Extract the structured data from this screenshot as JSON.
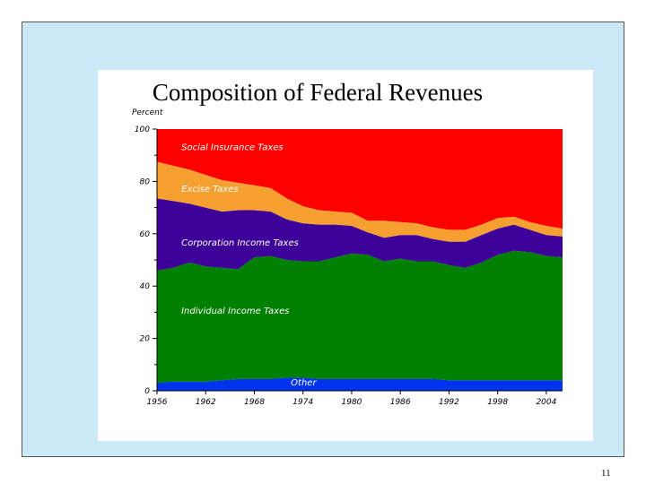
{
  "slide": {
    "page_number": "11"
  },
  "chart_data": {
    "type": "area",
    "stacked": true,
    "title": "Composition of Federal Revenues",
    "ylabel": "Percent",
    "xlabel": "",
    "ylim": [
      0,
      100
    ],
    "xlim": [
      1956,
      2006
    ],
    "y_ticks": [
      "0",
      "20",
      "40",
      "60",
      "80",
      "100"
    ],
    "x_ticks": [
      "1956",
      "1962",
      "1968",
      "1974",
      "1980",
      "1986",
      "1992",
      "1998",
      "2004"
    ],
    "x": [
      1956,
      1958,
      1960,
      1962,
      1964,
      1966,
      1968,
      1970,
      1972,
      1974,
      1976,
      1978,
      1980,
      1982,
      1984,
      1986,
      1988,
      1990,
      1992,
      1994,
      1996,
      1998,
      2000,
      2002,
      2004,
      2006
    ],
    "series": [
      {
        "name": "Other",
        "label": "Other",
        "color": "#0033ee",
        "values": [
          3,
          3.5,
          3.5,
          3.5,
          4,
          4.5,
          4.5,
          4.5,
          5,
          5,
          4.5,
          4.5,
          4.5,
          4.5,
          4.5,
          4.5,
          4.5,
          4.5,
          4,
          4,
          4,
          4,
          4,
          4,
          4,
          4
        ]
      },
      {
        "name": "Individual Income Taxes",
        "label": "Individual Income Taxes",
        "color": "#008000",
        "values": [
          43,
          43.5,
          45.5,
          44,
          43,
          42,
          46.5,
          47,
          45,
          44.5,
          45,
          46.5,
          48,
          47.5,
          45,
          46,
          45,
          45,
          44,
          43,
          45,
          48,
          49.5,
          49,
          47.5,
          47
        ]
      },
      {
        "name": "Corporation Income Taxes",
        "label": "Corporation Income Taxes",
        "color": "#3d0099",
        "values": [
          27.5,
          25.5,
          22.5,
          22.5,
          21.5,
          22.5,
          18,
          17,
          15.5,
          14.5,
          14,
          12.5,
          10.5,
          8.5,
          9,
          9,
          10,
          8.5,
          9,
          10,
          10.5,
          10,
          10,
          8.5,
          8,
          8
        ]
      },
      {
        "name": "Excise Taxes",
        "label": "Excise Taxes",
        "color": "#f5a030",
        "values": [
          14,
          13.5,
          13,
          12.5,
          12,
          10.5,
          9.5,
          9,
          8,
          6.5,
          5.5,
          5,
          5,
          4.5,
          6.5,
          5,
          4.5,
          4.5,
          4.5,
          4.5,
          4,
          4,
          3,
          3,
          3.5,
          3
        ]
      },
      {
        "name": "Social Insurance Taxes",
        "label": "Social Insurance Taxes",
        "color": "#ff0000",
        "values": [
          12.5,
          14,
          15.5,
          17.5,
          19.5,
          20.5,
          21.5,
          22.5,
          26.5,
          29.5,
          31,
          31.5,
          32,
          35,
          35,
          35.5,
          36,
          37.5,
          38.5,
          38.5,
          36.5,
          34,
          33.5,
          35.5,
          37,
          38
        ]
      }
    ]
  }
}
